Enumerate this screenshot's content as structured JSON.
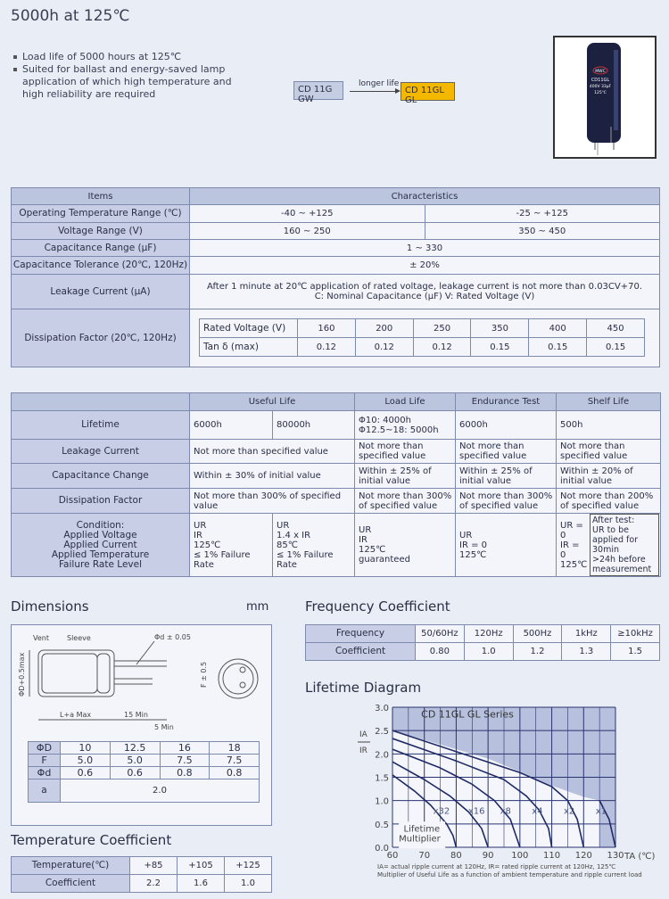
{
  "header": {
    "title": "5000h at 125℃",
    "bullets": [
      "Load life of 5000 hours at 125℃",
      "Suited for ballast and energy-saved lamp application of which high temperature and high reliability are required"
    ],
    "series_from": "CD 11G GW",
    "arrow_label": "longer life",
    "series_to": "CD 11GL GL",
    "product_print": [
      "MWC",
      "CD11GL",
      "400V 33μF",
      "125℃"
    ]
  },
  "spec": {
    "head": [
      "Items",
      "Characteristics"
    ],
    "rows": [
      {
        "item": "Operating Temperature Range (℃)",
        "v1": "-40 ~ +125",
        "v2": "-25 ~ +125"
      },
      {
        "item": "Voltage Range (V)",
        "v1": "160 ~ 250",
        "v2": "350 ~ 450"
      },
      {
        "item": "Capacitance Range (μF)",
        "v": "1 ~ 330"
      },
      {
        "item": "Capacitance Tolerance (20℃, 120Hz)",
        "v": "± 20%"
      },
      {
        "item": "Leakage Current (μA)",
        "v": "After 1 minute at 20℃ application of rated voltage, leakage current is not more than 0.03CV+70.",
        "v_b": "C: Nominal Capacitance (μF)    V: Rated Voltage (V)"
      },
      {
        "item": "Dissipation Factor (20℃, 120Hz)"
      }
    ],
    "df": {
      "voltage_label": "Rated Voltage (V)",
      "tan_label": "Tan δ (max)",
      "voltages": [
        "160",
        "200",
        "250",
        "350",
        "400",
        "450"
      ],
      "tan": [
        "0.12",
        "0.12",
        "0.12",
        "0.15",
        "0.15",
        "0.15"
      ]
    }
  },
  "life": {
    "head": [
      "Useful Life",
      "Load Life",
      "Endurance Test",
      "Shelf Life"
    ],
    "rows": [
      {
        "item": "Lifetime",
        "u1": "6000h",
        "u2": "80000h",
        "load": "Φ10: 4000h\nΦ12.5~18: 5000h",
        "end": "6000h",
        "shelf": "500h"
      },
      {
        "item": "Leakage Current",
        "u": "Not more than specified value",
        "load": "Not more than specified value",
        "end": "Not more than specified value",
        "shelf": "Not more than specified value"
      },
      {
        "item": "Capacitance Change",
        "u": "Within ± 30% of initial value",
        "load": "Within ± 25% of initial value",
        "end": "Within ± 25% of initial value",
        "shelf": "Within ± 20% of initial value"
      },
      {
        "item": "Dissipation Factor",
        "u": "Not more than 300% of specified value",
        "load": "Not more than 300% of specified value",
        "end": "Not more than 300% of specified value",
        "shelf": "Not more than 200% of specified value"
      },
      {
        "item": "Condition:\nApplied Voltage\nApplied Current\nApplied Temperature\nFailure Rate Level",
        "u1": "UR\nIR\n125℃\n≤ 1% Failure Rate",
        "u2": "UR\n1.4 x IR\n85℃\n≤ 1% Failure Rate",
        "load": "UR\nIR\n125℃\nguaranteed",
        "end": "UR\nIR = 0\n125℃",
        "shelf": "UR = 0\nIR = 0\n125℃",
        "shelf_note": "After test:\nUR to be applied for 30min\n>24h before measurement"
      }
    ]
  },
  "dimensions": {
    "title": "Dimensions",
    "unit": "mm",
    "labels": {
      "vent": "Vent",
      "sleeve": "Sleeve",
      "lead": "Φd ± 0.05",
      "dia": "ΦD+0.5max",
      "len": "L+a Max",
      "lead_len": "15 Min",
      "lead_diff": "5 Min",
      "pitch": "F ± 0.5"
    },
    "table": {
      "rows": [
        [
          "ΦD",
          "10",
          "12.5",
          "16",
          "18"
        ],
        [
          "F",
          "5.0",
          "5.0",
          "7.5",
          "7.5"
        ],
        [
          "Φd",
          "0.6",
          "0.6",
          "0.8",
          "0.8"
        ]
      ],
      "a_label": "a",
      "a_value": "2.0"
    }
  },
  "temp_coef": {
    "title": "Temperature Coefficient",
    "label": "Temperature(℃)",
    "temps": [
      "+85",
      "+105",
      "+125"
    ],
    "coef_label": "Coefficient",
    "coefs": [
      "2.2",
      "1.6",
      "1.0"
    ]
  },
  "freq_coef": {
    "title": "Frequency Coefficient",
    "label": "Frequency",
    "freqs": [
      "50/60Hz",
      "120Hz",
      "500Hz",
      "1kHz",
      "≥10kHz"
    ],
    "coef_label": "Coefficient",
    "coefs": [
      "0.80",
      "1.0",
      "1.2",
      "1.3",
      "1.5"
    ]
  },
  "lifetime": {
    "title": "Lifetime Diagram",
    "notes": [
      "IA= actual ripple current at 120Hz, IR= rated ripple current at 120Hz, 125℃",
      "Multiplier of Useful Life as a function of ambient temperature and ripple current load"
    ]
  },
  "chart_data": {
    "type": "line",
    "title": "CD 11GL GL Series",
    "xlabel": "TA (℃)",
    "ylabel_num": "IA",
    "ylabel_den": "IR",
    "xlim": [
      60,
      130
    ],
    "ylim": [
      0,
      3.0
    ],
    "grid": true,
    "xticks": [
      "60",
      "70",
      "80",
      "90",
      "100",
      "110",
      "120",
      "130"
    ],
    "yticks": [
      "0.0",
      "0.5",
      "1.0",
      "1.5",
      "2.0",
      "2.5",
      "3.0"
    ],
    "annotation": "Lifetime Multiplier",
    "boundary": [
      [
        60,
        2.5
      ],
      [
        70,
        2.3
      ],
      [
        80,
        2.1
      ],
      [
        90,
        1.9
      ],
      [
        100,
        1.62
      ],
      [
        110,
        1.32
      ],
      [
        120,
        1.08
      ],
      [
        125,
        1.0
      ]
    ],
    "series": [
      {
        "name": "x32",
        "points": [
          [
            60,
            1.55
          ],
          [
            67,
            1.2
          ],
          [
            72,
            0.9
          ],
          [
            77,
            0.5
          ],
          [
            79,
            0.25
          ],
          [
            80,
            0
          ]
        ]
      },
      {
        "name": "x16",
        "points": [
          [
            60,
            1.83
          ],
          [
            70,
            1.45
          ],
          [
            78,
            1.1
          ],
          [
            84,
            0.75
          ],
          [
            88,
            0.4
          ],
          [
            90,
            0
          ]
        ]
      },
      {
        "name": "x8",
        "points": [
          [
            60,
            2.1
          ],
          [
            75,
            1.7
          ],
          [
            85,
            1.35
          ],
          [
            92,
            1.0
          ],
          [
            97,
            0.6
          ],
          [
            100,
            0
          ]
        ]
      },
      {
        "name": "x4",
        "points": [
          [
            60,
            2.33
          ],
          [
            80,
            1.85
          ],
          [
            95,
            1.45
          ],
          [
            102,
            1.1
          ],
          [
            106,
            0.8
          ],
          [
            109,
            0.4
          ],
          [
            110,
            0
          ]
        ]
      },
      {
        "name": "x2",
        "points": [
          [
            60,
            2.5
          ],
          [
            80,
            2.05
          ],
          [
            100,
            1.6
          ],
          [
            110,
            1.3
          ],
          [
            115,
            1.0
          ],
          [
            118,
            0.6
          ],
          [
            120,
            0
          ]
        ]
      },
      {
        "name": "x1",
        "points": [
          [
            125,
            1.0
          ],
          [
            128,
            0.6
          ],
          [
            130,
            0
          ]
        ]
      }
    ]
  },
  "colors": {
    "header": "#bcc5de",
    "label_cell": "#c7cee5",
    "highlight": "#f5b800",
    "border": "#7d89ad",
    "curve": "#1f2a66",
    "shade": "#b7c0dc"
  }
}
